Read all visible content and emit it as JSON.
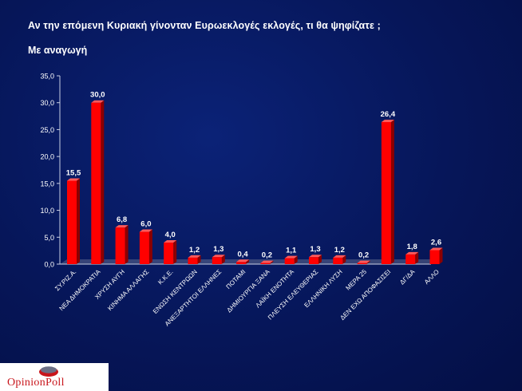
{
  "title": "Αν την επόμενη Κυριακή γίνονταν Ευρωεκλογές εκλογές, τι θα ψηφίζατε ;",
  "subtitle": "Με αναγωγή",
  "logo": {
    "text": "OpinionPoll",
    "icon": "opinionpoll-logo-mark"
  },
  "colors": {
    "background": "#06155a",
    "bar": "#ff0000",
    "bar_side": "#8c0000",
    "bar_top": "#ff5a5a"
  },
  "chart_data": {
    "type": "bar",
    "categories": [
      "ΣΥ.ΡΙΖ.Α.",
      "ΝΕΑ ΔΗΜΟΚΡΑΤΙΑ",
      "ΧΡΥΣΗ ΑΥΓΗ",
      "ΚΙΝΗΜΑ ΑΛΛΑΓΗΣ",
      "Κ.Κ.Ε.",
      "ΕΝΩΣΗ ΚΕΝΤΡΩΩΝ",
      "ΑΝΕΞΑΡΤΗΤΟΙ ΕΛΛΗΝΕΣ",
      "ΠΟΤΑΜΙ",
      "ΔΗΜΙΟΥΡΓΙΑ ΞΑΝΑ",
      "ΛΑΪΚΗ ΕΝΟΤΗΤΑ",
      "ΠΛΕΥΣΗ ΕΛΕΥΘΕΡΙΑΣ",
      "ΕΛΛΗΝΙΚΗ ΛΥΣΗ",
      "ΜΕΡΑ 25",
      "ΔΕΝ ΕΧΩ ΑΠΟΦΑΣΙΣΕΙ",
      "ΔΓ/ΔΑ",
      "ΑΛΛΟ"
    ],
    "values": [
      15.5,
      30.0,
      6.8,
      6.0,
      4.0,
      1.2,
      1.3,
      0.4,
      0.2,
      1.1,
      1.3,
      1.2,
      0.2,
      26.4,
      1.8,
      2.6
    ],
    "value_labels": [
      "15,5",
      "30,0",
      "6,8",
      "6,0",
      "4,0",
      "1,2",
      "1,3",
      "0,4",
      "0,2",
      "1,1",
      "1,3",
      "1,2",
      "0,2",
      "26,4",
      "1,8",
      "2,6"
    ],
    "yticks": [
      "0,0",
      "5,0",
      "10,0",
      "15,0",
      "20,0",
      "25,0",
      "30,0",
      "35,0"
    ],
    "ylim": [
      0,
      35
    ],
    "grid": false,
    "legend": "none"
  }
}
